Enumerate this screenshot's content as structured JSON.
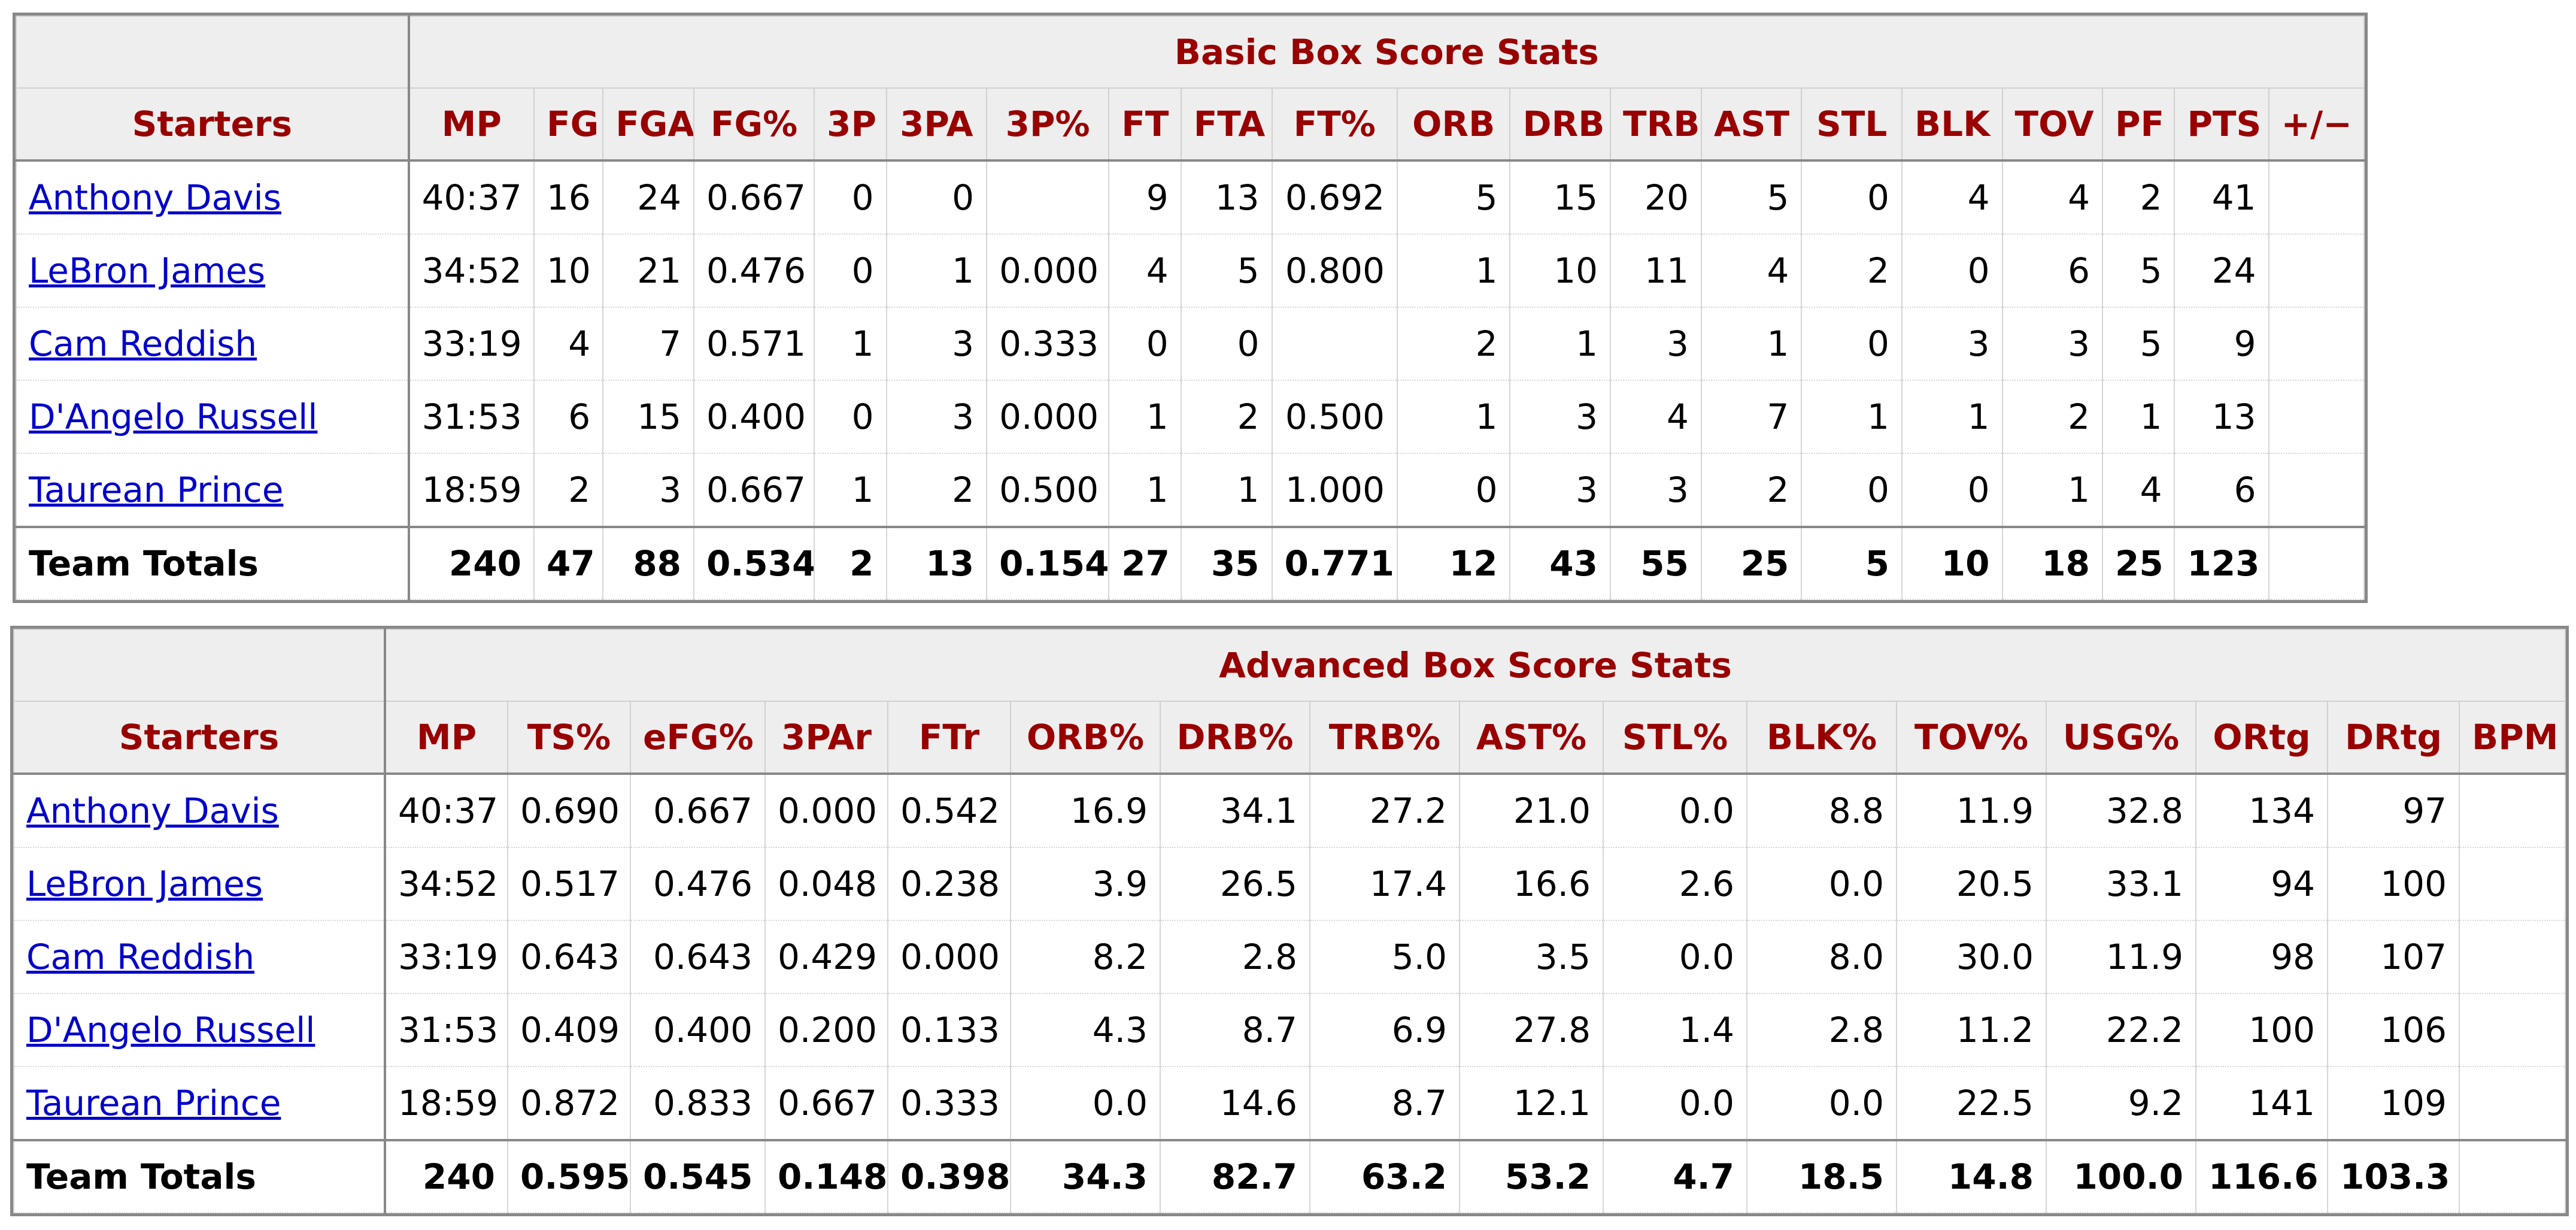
{
  "basic": {
    "title": "Basic Box Score Stats",
    "columns": [
      "Starters",
      "MP",
      "FG",
      "FGA",
      "FG%",
      "3P",
      "3PA",
      "3P%",
      "FT",
      "FTA",
      "FT%",
      "ORB",
      "DRB",
      "TRB",
      "AST",
      "STL",
      "BLK",
      "TOV",
      "PF",
      "PTS",
      "+/−"
    ],
    "rows": [
      {
        "player": "Anthony Davis",
        "values": [
          "40:37",
          "16",
          "24",
          "0.667",
          "0",
          "0",
          "",
          "9",
          "13",
          "0.692",
          "5",
          "15",
          "20",
          "5",
          "0",
          "4",
          "4",
          "2",
          "41",
          ""
        ]
      },
      {
        "player": "LeBron James",
        "values": [
          "34:52",
          "10",
          "21",
          "0.476",
          "0",
          "1",
          "0.000",
          "4",
          "5",
          "0.800",
          "1",
          "10",
          "11",
          "4",
          "2",
          "0",
          "6",
          "5",
          "24",
          ""
        ]
      },
      {
        "player": "Cam Reddish",
        "values": [
          "33:19",
          "4",
          "7",
          "0.571",
          "1",
          "3",
          "0.333",
          "0",
          "0",
          "",
          "2",
          "1",
          "3",
          "1",
          "0",
          "3",
          "3",
          "5",
          "9",
          ""
        ]
      },
      {
        "player": "D'Angelo Russell",
        "values": [
          "31:53",
          "6",
          "15",
          "0.400",
          "0",
          "3",
          "0.000",
          "1",
          "2",
          "0.500",
          "1",
          "3",
          "4",
          "7",
          "1",
          "1",
          "2",
          "1",
          "13",
          ""
        ]
      },
      {
        "player": "Taurean Prince",
        "values": [
          "18:59",
          "2",
          "3",
          "0.667",
          "1",
          "2",
          "0.500",
          "1",
          "1",
          "1.000",
          "0",
          "3",
          "3",
          "2",
          "0",
          "0",
          "1",
          "4",
          "6",
          ""
        ]
      }
    ],
    "totals": {
      "label": "Team Totals",
      "values": [
        "240",
        "47",
        "88",
        "0.534",
        "2",
        "13",
        "0.154",
        "27",
        "35",
        "0.771",
        "12",
        "43",
        "55",
        "25",
        "5",
        "10",
        "18",
        "25",
        "123",
        ""
      ]
    }
  },
  "advanced": {
    "title": "Advanced Box Score Stats",
    "columns": [
      "Starters",
      "MP",
      "TS%",
      "eFG%",
      "3PAr",
      "FTr",
      "ORB%",
      "DRB%",
      "TRB%",
      "AST%",
      "STL%",
      "BLK%",
      "TOV%",
      "USG%",
      "ORtg",
      "DRtg",
      "BPM"
    ],
    "rows": [
      {
        "player": "Anthony Davis",
        "values": [
          "40:37",
          "0.690",
          "0.667",
          "0.000",
          "0.542",
          "16.9",
          "34.1",
          "27.2",
          "21.0",
          "0.0",
          "8.8",
          "11.9",
          "32.8",
          "134",
          "97",
          ""
        ]
      },
      {
        "player": "LeBron James",
        "values": [
          "34:52",
          "0.517",
          "0.476",
          "0.048",
          "0.238",
          "3.9",
          "26.5",
          "17.4",
          "16.6",
          "2.6",
          "0.0",
          "20.5",
          "33.1",
          "94",
          "100",
          ""
        ]
      },
      {
        "player": "Cam Reddish",
        "values": [
          "33:19",
          "0.643",
          "0.643",
          "0.429",
          "0.000",
          "8.2",
          "2.8",
          "5.0",
          "3.5",
          "0.0",
          "8.0",
          "30.0",
          "11.9",
          "98",
          "107",
          ""
        ]
      },
      {
        "player": "D'Angelo Russell",
        "values": [
          "31:53",
          "0.409",
          "0.400",
          "0.200",
          "0.133",
          "4.3",
          "8.7",
          "6.9",
          "27.8",
          "1.4",
          "2.8",
          "11.2",
          "22.2",
          "100",
          "106",
          ""
        ]
      },
      {
        "player": "Taurean Prince",
        "values": [
          "18:59",
          "0.872",
          "0.833",
          "0.667",
          "0.333",
          "0.0",
          "14.6",
          "8.7",
          "12.1",
          "0.0",
          "0.0",
          "22.5",
          "9.2",
          "141",
          "109",
          ""
        ]
      }
    ],
    "totals": {
      "label": "Team Totals",
      "values": [
        "240",
        "0.595",
        "0.545",
        "0.148",
        "0.398",
        "34.3",
        "82.7",
        "63.2",
        "53.2",
        "4.7",
        "18.5",
        "14.8",
        "100.0",
        "116.6",
        "103.3",
        ""
      ]
    }
  },
  "colors": {
    "header_text": "#990000",
    "link": "#0000cc",
    "header_bg": "#eeeeee"
  }
}
